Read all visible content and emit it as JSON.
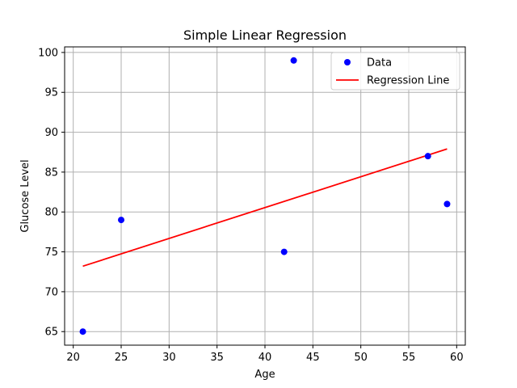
{
  "chart_data": {
    "type": "scatter",
    "title": "Simple Linear Regression",
    "xlabel": "Age",
    "ylabel": "Glucose Level",
    "xlim": [
      19.1,
      60.9
    ],
    "ylim": [
      63.3,
      100.7
    ],
    "xticks": [
      20,
      25,
      30,
      35,
      40,
      45,
      50,
      55,
      60
    ],
    "yticks": [
      65,
      70,
      75,
      80,
      85,
      90,
      95,
      100
    ],
    "grid": true,
    "legend_position": "upper right",
    "series": [
      {
        "name": "Data",
        "kind": "scatter",
        "color": "#0000ff",
        "x": [
          21,
          25,
          42,
          43,
          57,
          59
        ],
        "y": [
          65,
          79,
          75,
          99,
          87,
          81
        ]
      },
      {
        "name": "Regression Line",
        "kind": "line",
        "color": "#ff0000",
        "x": [
          21,
          59
        ],
        "y": [
          73.2,
          87.9
        ]
      }
    ]
  }
}
